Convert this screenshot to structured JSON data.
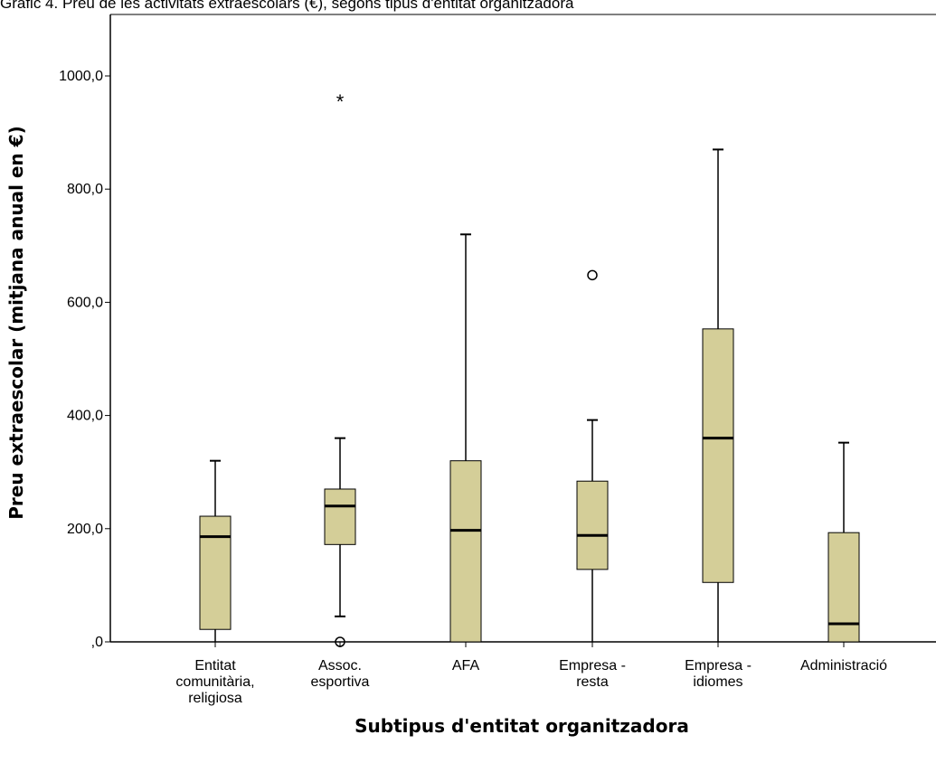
{
  "chart_data": {
    "type": "boxplot",
    "title": "Gràfic 4. Preu de les activitats extraescolars (€), segons tipus d'entitat organitzadora",
    "xlabel": "Subtipus d'entitat organitzadora",
    "ylabel": "Preu extraescolar (mitjana anual en €)",
    "ylim": [
      0,
      1100
    ],
    "yticks": [
      0,
      200,
      400,
      600,
      800,
      1000
    ],
    "ytick_labels": [
      ",0",
      "200,0",
      "400,0",
      "600,0",
      "800,0",
      "1000,0"
    ],
    "box_color": "#d4ce98",
    "categories": [
      {
        "label": [
          "Entitat",
          "comunitària,",
          "religiosa"
        ],
        "min": 0,
        "q1": 22,
        "median": 186,
        "q3": 222,
        "max": 320,
        "outliers": [],
        "extremes": []
      },
      {
        "label": [
          "Assoc.",
          "esportiva"
        ],
        "min": 45,
        "q1": 172,
        "median": 240,
        "q3": 270,
        "max": 360,
        "outliers": [
          0
        ],
        "extremes": [
          960
        ]
      },
      {
        "label": [
          "AFA"
        ],
        "min": 0,
        "q1": 0,
        "median": 197,
        "q3": 320,
        "max": 720,
        "outliers": [],
        "extremes": []
      },
      {
        "label": [
          "Empresa -",
          "resta"
        ],
        "min": 0,
        "q1": 128,
        "median": 188,
        "q3": 284,
        "max": 392,
        "outliers": [
          648
        ],
        "extremes": []
      },
      {
        "label": [
          "Empresa -",
          "idiomes"
        ],
        "min": 0,
        "q1": 105,
        "median": 360,
        "q3": 553,
        "max": 870,
        "outliers": [],
        "extremes": []
      },
      {
        "label": [
          "Administració"
        ],
        "min": 0,
        "q1": 0,
        "median": 32,
        "q3": 193,
        "max": 352,
        "outliers": [],
        "extremes": []
      }
    ]
  }
}
